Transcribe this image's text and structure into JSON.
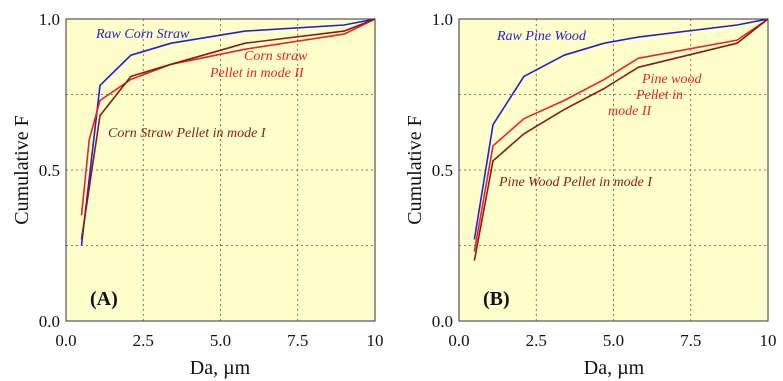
{
  "chart_data": [
    {
      "type": "line",
      "panel_label": "(A)",
      "xlabel": "Da, µm",
      "ylabel": "Cumulative F",
      "xlim": [
        0,
        10
      ],
      "ylim": [
        0,
        1
      ],
      "xticks": [
        "0.0",
        "2.5",
        "5.0",
        "7.5",
        "10"
      ],
      "yticks": [
        "0.0",
        "0.5",
        "1.0"
      ],
      "grid_x": [
        2.5,
        5.0,
        7.5
      ],
      "grid_y": [
        0.25,
        0.5,
        0.75
      ],
      "background": "#ffffcc",
      "annotations": [
        "Raw Corn Straw",
        "Corn straw",
        "Pellet in mode II",
        "Corn Straw Pellet in mode I"
      ],
      "series": [
        {
          "name": "Raw Corn Straw",
          "color": "#2222cc",
          "x": [
            0.5,
            1.1,
            2.1,
            3.4,
            5.8,
            9.0,
            10
          ],
          "y": [
            0.25,
            0.78,
            0.88,
            0.92,
            0.96,
            0.98,
            1.0
          ]
        },
        {
          "name": "Corn straw Pellet in mode II",
          "color": "#ee2222",
          "x": [
            0.5,
            0.75,
            1.1,
            2.1,
            3.4,
            5.8,
            9.0,
            10
          ],
          "y": [
            0.35,
            0.6,
            0.73,
            0.8,
            0.85,
            0.9,
            0.95,
            1.0
          ]
        },
        {
          "name": "Corn Straw Pellet in mode I",
          "color": "#8b1a1a",
          "x": [
            0.5,
            1.1,
            2.1,
            3.4,
            5.8,
            9.0,
            10
          ],
          "y": [
            0.27,
            0.68,
            0.81,
            0.85,
            0.92,
            0.96,
            1.0
          ]
        }
      ]
    },
    {
      "type": "line",
      "panel_label": "(B)",
      "xlabel": "Da, µm",
      "ylabel": "Cumulative F",
      "xlim": [
        0,
        10
      ],
      "ylim": [
        0,
        1
      ],
      "xticks": [
        "0.0",
        "2.5",
        "5.0",
        "7.5",
        "10"
      ],
      "yticks": [
        "0.0",
        "0.5",
        "1.0"
      ],
      "grid_x": [
        2.5,
        5.0,
        7.5
      ],
      "grid_y": [
        0.25,
        0.5,
        0.75
      ],
      "background": "#ffffcc",
      "annotations": [
        "Raw Pine Wood",
        "Pine wood",
        "Pellet in",
        "mode II",
        "Pine Wood Pellet in mode I"
      ],
      "series": [
        {
          "name": "Raw Pine Wood",
          "color": "#2222cc",
          "x": [
            0.5,
            1.1,
            2.1,
            3.4,
            4.7,
            5.8,
            9.0,
            10
          ],
          "y": [
            0.27,
            0.65,
            0.81,
            0.88,
            0.92,
            0.94,
            0.98,
            1.0
          ]
        },
        {
          "name": "Pine wood Pellet in mode II",
          "color": "#ee2222",
          "x": [
            0.5,
            1.1,
            2.1,
            3.4,
            4.7,
            5.8,
            9.0,
            10
          ],
          "y": [
            0.23,
            0.58,
            0.67,
            0.73,
            0.8,
            0.87,
            0.93,
            1.0
          ]
        },
        {
          "name": "Pine Wood Pellet in mode I",
          "color": "#8b1a1a",
          "x": [
            0.5,
            1.1,
            2.1,
            3.4,
            4.7,
            5.8,
            9.0,
            10
          ],
          "y": [
            0.2,
            0.53,
            0.62,
            0.7,
            0.77,
            0.84,
            0.92,
            1.0
          ]
        }
      ]
    }
  ]
}
